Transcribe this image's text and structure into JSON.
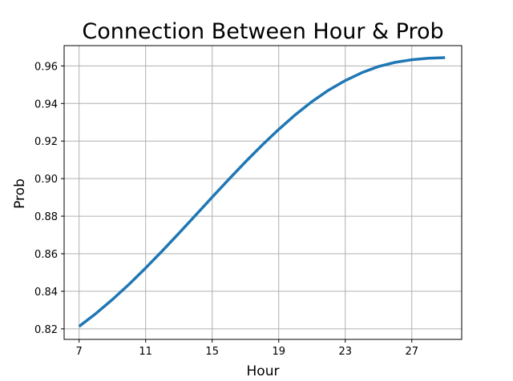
{
  "chart_data": {
    "type": "line",
    "title": "Connection Between Hour & Prob",
    "xlabel": "Hour",
    "ylabel": "Prob",
    "xlim": [
      6.1,
      30.0
    ],
    "ylim": [
      0.8144,
      0.9708
    ],
    "xticks": [
      7,
      11,
      15,
      19,
      23,
      27
    ],
    "yticks": [
      0.82,
      0.84,
      0.86,
      0.88,
      0.9,
      0.92,
      0.94,
      0.96
    ],
    "ytick_labels": [
      "0.82",
      "0.84",
      "0.86",
      "0.88",
      "0.90",
      "0.92",
      "0.94",
      "0.96"
    ],
    "grid": true,
    "line_color": "#1f77b4",
    "series": [
      {
        "x": [
          7,
          8,
          9,
          10,
          11,
          12,
          13,
          14,
          15,
          16,
          17,
          18,
          19,
          20,
          21,
          22,
          23,
          24,
          25,
          26,
          27,
          28,
          29
        ],
        "values": [
          0.8213,
          0.8281,
          0.8356,
          0.8437,
          0.8524,
          0.8615,
          0.8709,
          0.8805,
          0.8901,
          0.8996,
          0.9089,
          0.9178,
          0.9262,
          0.934,
          0.941,
          0.9471,
          0.9522,
          0.9564,
          0.9597,
          0.9619,
          0.9633,
          0.9641,
          0.9644
        ]
      }
    ]
  }
}
